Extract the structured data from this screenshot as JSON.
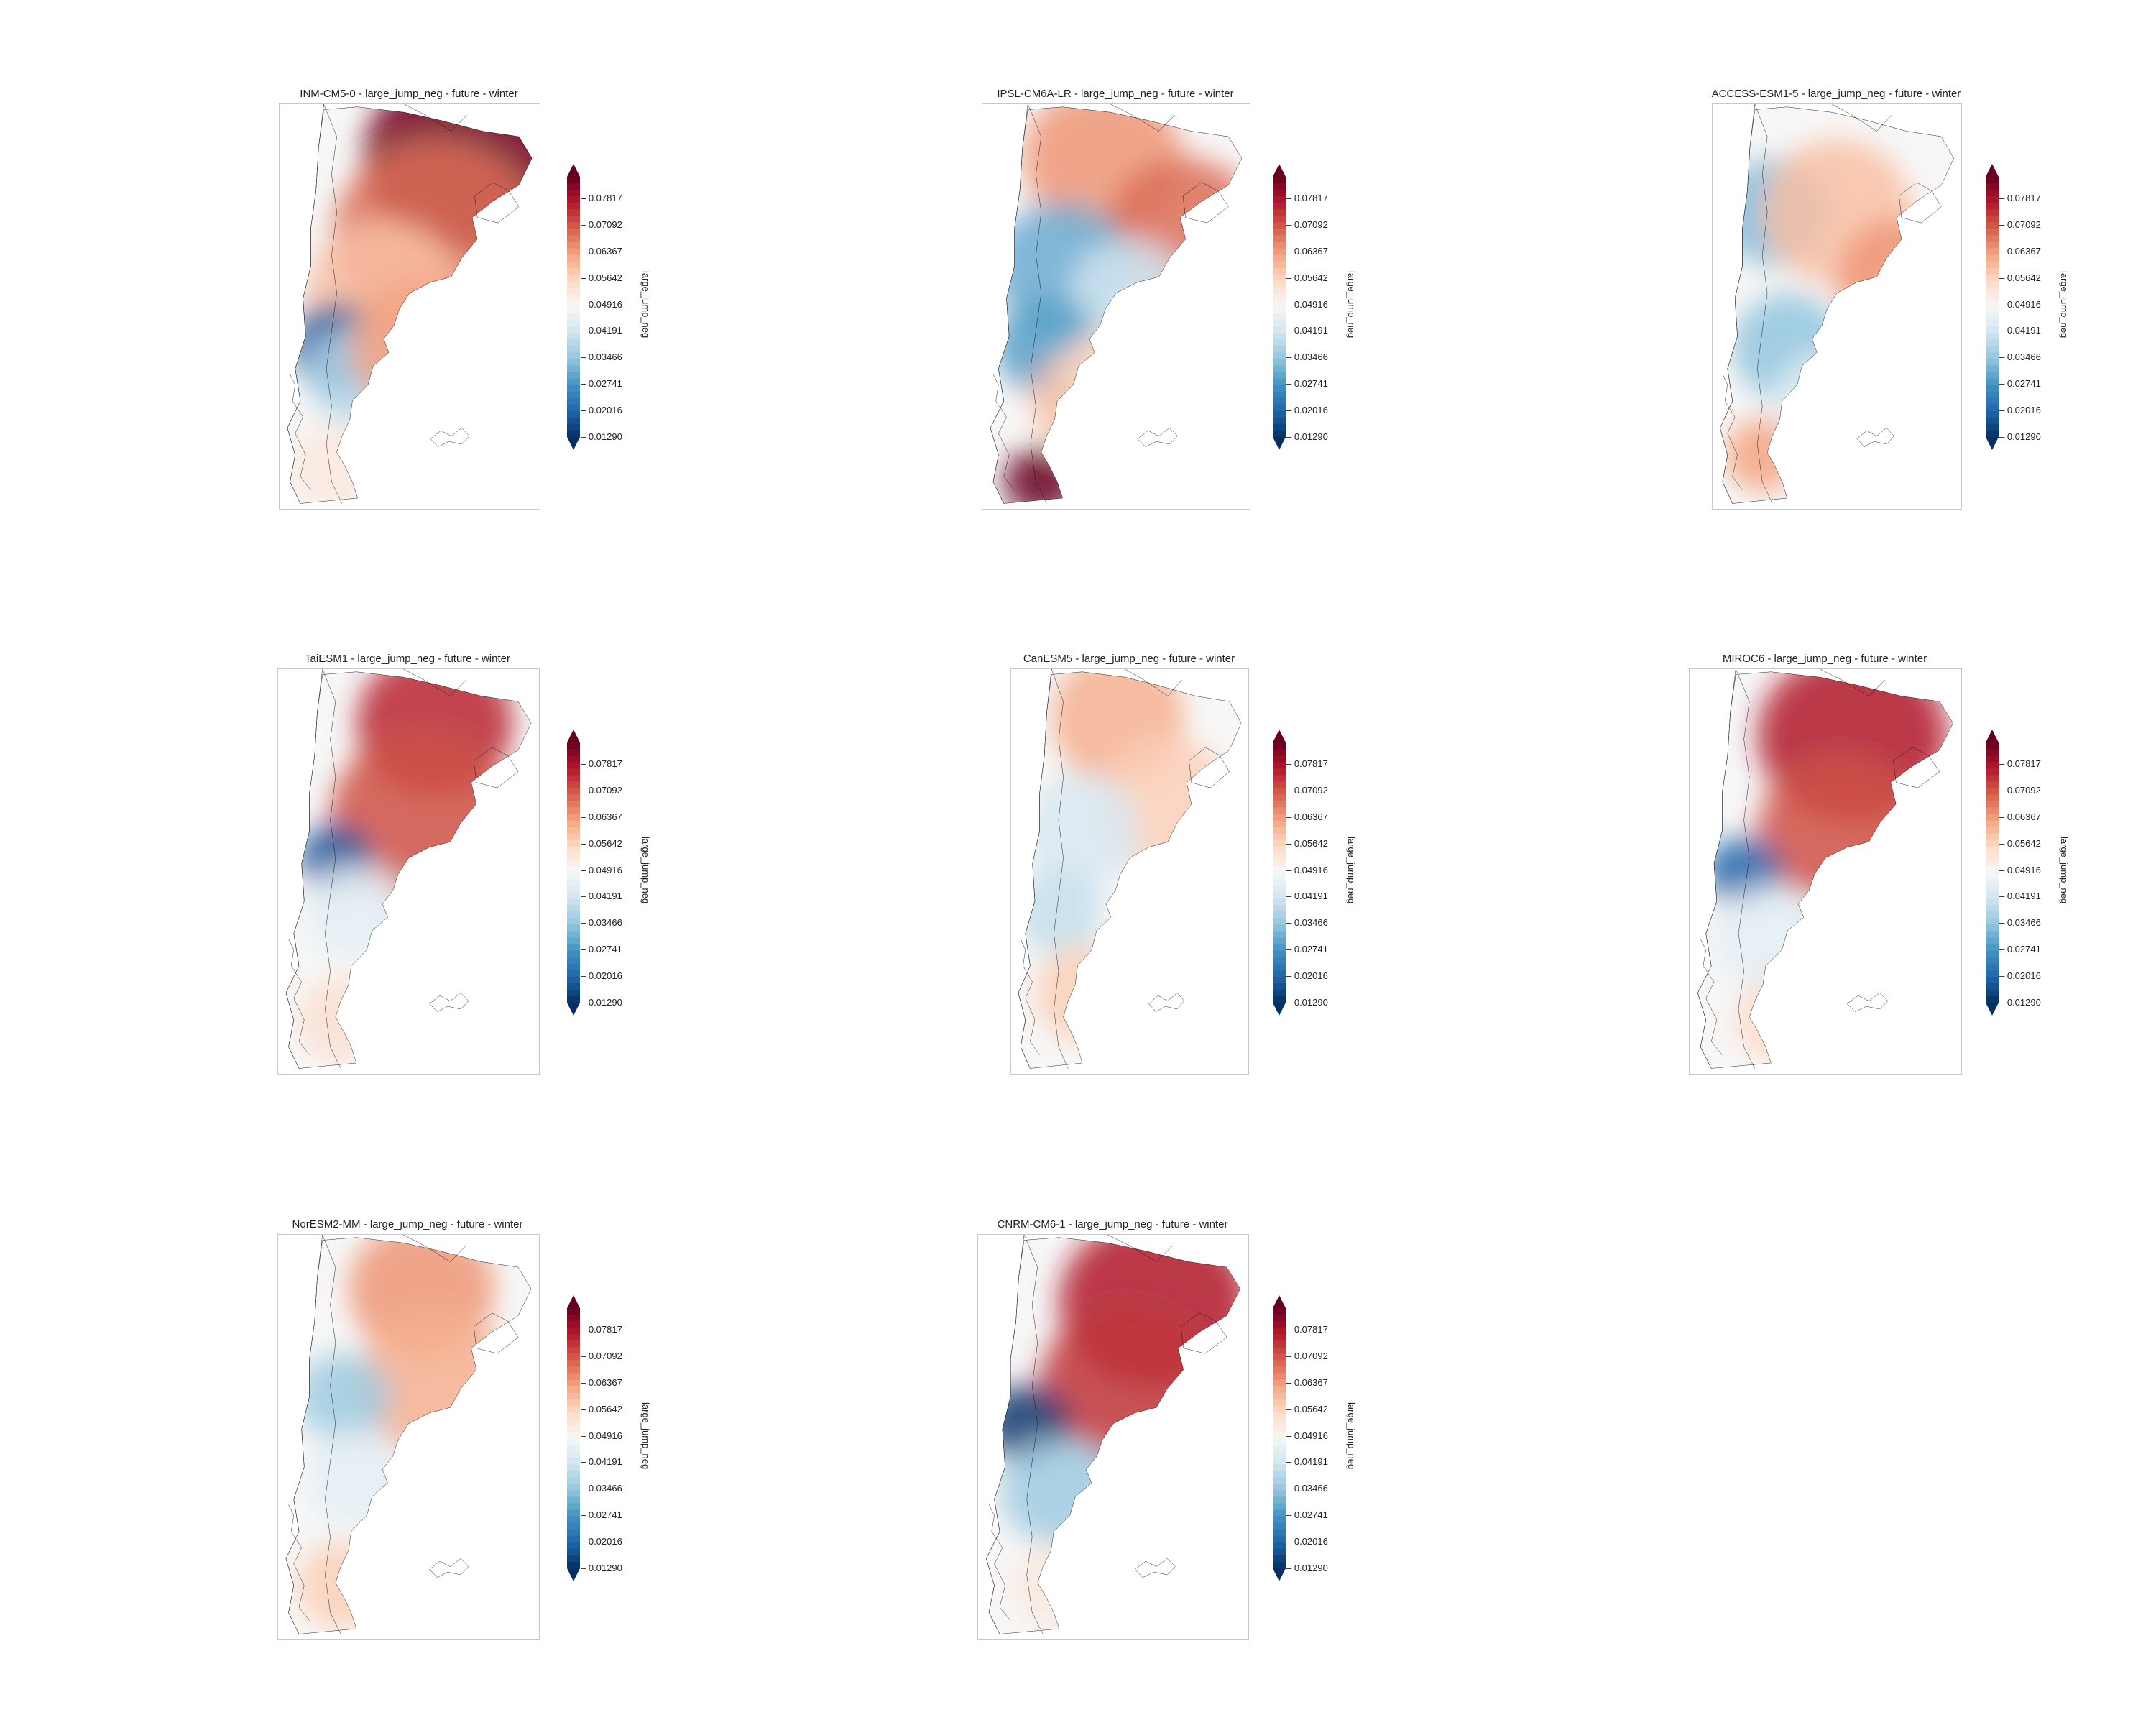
{
  "figure": {
    "panels": [
      {
        "title": "INM-CM5-0 - large_jump_neg - future - winter",
        "pattern": "inm"
      },
      {
        "title": "IPSL-CM6A-LR - large_jump_neg - future - winter",
        "pattern": "ipsl"
      },
      {
        "title": "ACCESS-ESM1-5 - large_jump_neg - future - winter",
        "pattern": "access"
      },
      {
        "title": "TaiESM1 - large_jump_neg - future - winter",
        "pattern": "tai"
      },
      {
        "title": "CanESM5 - large_jump_neg - future - winter",
        "pattern": "can"
      },
      {
        "title": "MIROC6 - large_jump_neg - future - winter",
        "pattern": "miroc"
      },
      {
        "title": "NorESM2-MM - large_jump_neg - future - winter",
        "pattern": "nor"
      },
      {
        "title": "CNRM-CM6-1 - large_jump_neg - future - winter",
        "pattern": "cnrm"
      }
    ],
    "colorbar": {
      "label": "large_jump_neg",
      "ticks": [
        "0.07817",
        "0.07092",
        "0.06367",
        "0.05642",
        "0.04916",
        "0.04191",
        "0.03466",
        "0.02741",
        "0.02016",
        "0.01290"
      ],
      "colormap": "RdBu_r",
      "extend": "both",
      "vmin": 0.0129,
      "vmax": 0.07817
    }
  }
}
